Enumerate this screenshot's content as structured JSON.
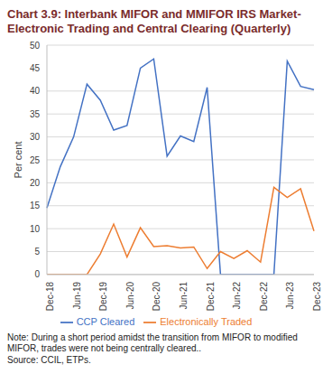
{
  "chart_data": {
    "type": "line",
    "title": "Chart 3.9: Interbank MIFOR and MMIFOR IRS Market- Electronic Trading and Central Clearing (Quarterly)",
    "y_label": "Per cent",
    "categories": [
      "Dec-18",
      null,
      "Jun-19",
      null,
      "Dec-19",
      null,
      "Jun-20",
      null,
      "Dec-20",
      null,
      "Jun-21",
      null,
      "Dec-21",
      null,
      "Jun-22",
      null,
      "Dec-22",
      null,
      "Jun-23",
      null,
      "Dec-23"
    ],
    "series": [
      {
        "name": "CCP Cleared",
        "color": "#4472c4",
        "values": [
          14.5,
          23.5,
          30,
          41.5,
          38,
          31.5,
          32.5,
          45,
          47,
          25.8,
          30.2,
          29,
          40.8,
          0,
          0,
          0,
          0,
          0,
          46.5,
          41,
          40.3
        ]
      },
      {
        "name": "Electronically Traded",
        "color": "#ed7d31",
        "values": [
          0,
          0,
          0,
          0,
          4.5,
          11,
          3.8,
          10.2,
          6.1,
          6.3,
          5.8,
          6,
          1.3,
          5,
          3.5,
          5.2,
          2.7,
          19,
          16.8,
          18.7,
          9.5
        ]
      }
    ],
    "ylim": [
      0,
      50
    ],
    "yticks": [
      0,
      5,
      10,
      15,
      20,
      25,
      30,
      35,
      40,
      45,
      50
    ],
    "grid": true,
    "legend": "bottom",
    "notes": [
      "Note: During a short period amidst the transition from MIFOR to modified MIFOR, trades were not being centrally cleared..",
      "Source: CCIL, ETPs."
    ]
  }
}
